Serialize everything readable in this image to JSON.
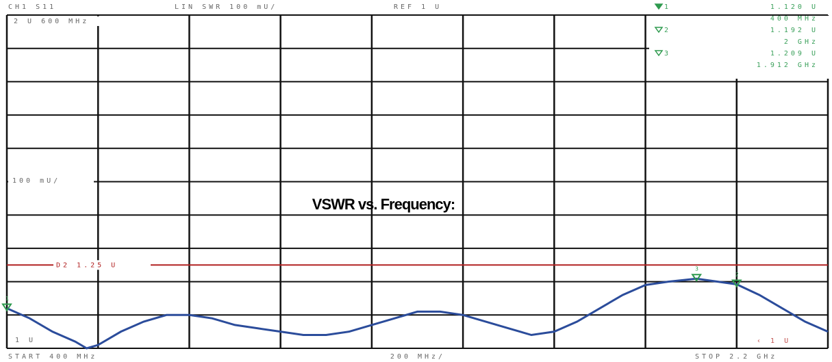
{
  "chart_data": {
    "type": "line",
    "title": "VSWR vs. Frequency:",
    "header": [
      "CH1 S11",
      "LIN SWR 100 mU/",
      "REF 1 U"
    ],
    "annotations": [
      "2 U  600 MHz",
      "100 mU/",
      "1 U",
      "START  400 MHz",
      "200 MHz/",
      "STOP  2.2 GHz",
      "‹ 1 U"
    ],
    "x": [
      400,
      450,
      500,
      550,
      575,
      600,
      650,
      700,
      750,
      800,
      850,
      900,
      950,
      1000,
      1050,
      1100,
      1150,
      1200,
      1250,
      1300,
      1350,
      1400,
      1450,
      1500,
      1550,
      1600,
      1650,
      1700,
      1750,
      1800,
      1850,
      1912,
      2000,
      2050,
      2100,
      2150,
      2200
    ],
    "series": [
      {
        "color": "#2b4c9b",
        "values": [
          1.12,
          1.09,
          1.05,
          1.02,
          1.0,
          1.01,
          1.05,
          1.08,
          1.1,
          1.1,
          1.09,
          1.07,
          1.06,
          1.05,
          1.04,
          1.04,
          1.05,
          1.07,
          1.09,
          1.11,
          1.11,
          1.1,
          1.08,
          1.06,
          1.04,
          1.05,
          1.08,
          1.12,
          1.16,
          1.19,
          1.2,
          1.209,
          1.192,
          1.16,
          1.12,
          1.08,
          1.05
        ]
      }
    ],
    "xlim": [
      400,
      2200
    ],
    "xticks": [
      400,
      600,
      800,
      1000,
      1200,
      1400,
      1600,
      1800,
      2000,
      2200
    ],
    "ylim": [
      1,
      2
    ],
    "yticks": [
      1,
      1.1,
      1.2,
      1.3,
      1.4,
      1.5,
      1.6,
      1.7,
      1.8,
      1.9,
      2
    ],
    "grid": true,
    "limit_line": {
      "label": "D2 1.25 U",
      "value": 1.25,
      "color": "#b22222"
    },
    "markers": [
      {
        "label": "1",
        "x": 400,
        "value": 1.12,
        "value_label": "1.120 U",
        "x_label": "400 MHz"
      },
      {
        "label": "2",
        "x": 2000,
        "value": 1.192,
        "value_label": "1.192 U",
        "x_label": "2 GHz"
      },
      {
        "label": "3",
        "x": 1912,
        "value": 1.209,
        "value_label": "1.209 U",
        "x_label": "1.912 GHz"
      }
    ],
    "marker_color": "#2e9a4e"
  }
}
